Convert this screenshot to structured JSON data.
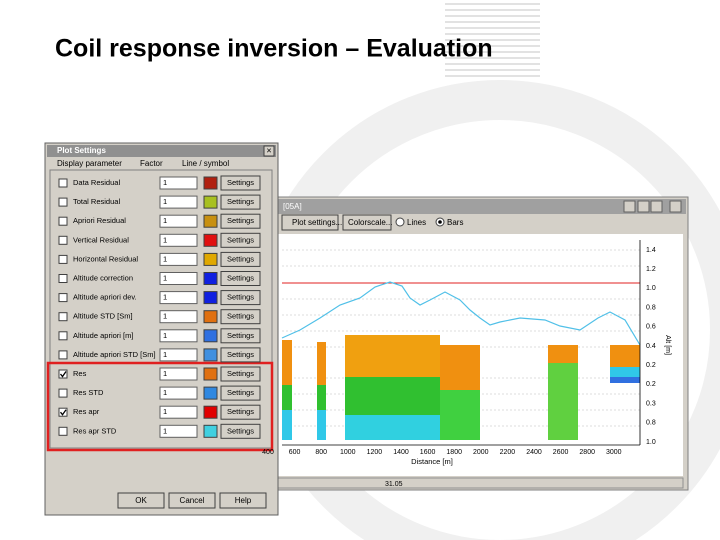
{
  "title": "Coil response inversion – Evaluation",
  "dialog": {
    "title": "Plot Settings",
    "close": "×",
    "headers": [
      "Display parameter",
      "Factor",
      "Line / symbol"
    ],
    "rows": [
      {
        "label": "Data Residual",
        "checked": false,
        "factor": "1",
        "color": "#b02010",
        "button": "Settings"
      },
      {
        "label": "Total Residual",
        "checked": false,
        "factor": "1",
        "color": "#a8c020",
        "button": "Settings"
      },
      {
        "label": "Apriori Residual",
        "checked": false,
        "factor": "1",
        "color": "#c89010",
        "button": "Settings"
      },
      {
        "label": "Vertical Residual",
        "checked": false,
        "factor": "1",
        "color": "#e01010",
        "button": "Settings"
      },
      {
        "label": "Horizontal Residual",
        "checked": false,
        "factor": "1",
        "color": "#e0a800",
        "button": "Settings"
      },
      {
        "label": "Altitude correction",
        "checked": false,
        "factor": "1",
        "color": "#1020e0",
        "button": "Settings"
      },
      {
        "label": "Altitude apriori dev.",
        "checked": false,
        "factor": "1",
        "color": "#1020e0",
        "button": "Settings"
      },
      {
        "label": "Altitude STD [Sm]",
        "checked": false,
        "factor": "1",
        "color": "#e07010",
        "button": "Settings"
      },
      {
        "label": "Altitude apriori [m]",
        "checked": false,
        "factor": "1",
        "color": "#3070e0",
        "button": "Settings"
      },
      {
        "label": "Altitude apriori STD [Sm]",
        "checked": false,
        "factor": "1",
        "color": "#4090e0",
        "button": "Settings"
      },
      {
        "label": "Res",
        "checked": true,
        "factor": "1",
        "color": "#e07010",
        "button": "Settings"
      },
      {
        "label": "Res STD",
        "checked": false,
        "factor": "1",
        "color": "#3088e0",
        "button": "Settings"
      },
      {
        "label": "Res apr",
        "checked": true,
        "factor": "1",
        "color": "#e00000",
        "button": "Settings"
      },
      {
        "label": "Res apr STD",
        "checked": false,
        "factor": "1",
        "color": "#40d0e0",
        "button": "Settings"
      }
    ],
    "buttons": [
      "OK",
      "Cancel",
      "Help"
    ]
  },
  "window": {
    "title": "[05A]",
    "toolbar": [
      "Plot settings...",
      "Colorscale..."
    ],
    "radios": [
      "Lines",
      "Bars"
    ],
    "right_axis": [
      "1.4",
      "1.2",
      "1.0",
      "0.8",
      "0.6",
      "0.4",
      "0.2",
      "0.2",
      "0.3",
      "0.8",
      "1.0"
    ],
    "axis_label": "Alt [m]",
    "x_labels": [
      "400",
      "600",
      "800",
      "1000",
      "1200",
      "1400",
      "1600",
      "1800",
      "2000",
      "2200",
      "2400",
      "2600",
      "2800",
      "3000"
    ],
    "x_title": "Distance [m]",
    "status": "31.05"
  }
}
